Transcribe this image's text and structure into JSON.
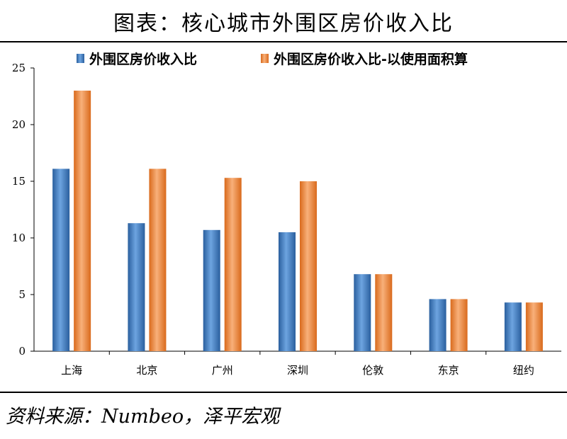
{
  "title": "图表：核心城市外围区房价收入比",
  "source": "资料来源：Numbeo，泽平宏观",
  "colors": {
    "blue": "#3f7ec6",
    "orange": "#f0883c",
    "axis": "#000000"
  },
  "chart_data": {
    "type": "bar",
    "categories": [
      "上海",
      "北京",
      "广州",
      "深圳",
      "伦敦",
      "东京",
      "纽约"
    ],
    "series": [
      {
        "name": "外围区房价收入比",
        "values": [
          16.1,
          11.3,
          10.7,
          10.5,
          6.8,
          4.6,
          4.3
        ]
      },
      {
        "name": "外围区房价收入比-以使用面积算",
        "values": [
          23.0,
          16.1,
          15.3,
          15.0,
          6.8,
          4.6,
          4.3
        ]
      }
    ],
    "ylim": [
      0,
      25
    ],
    "yticks": [
      0,
      5,
      10,
      15,
      20,
      25
    ],
    "grid": false,
    "legend_position": "top"
  }
}
